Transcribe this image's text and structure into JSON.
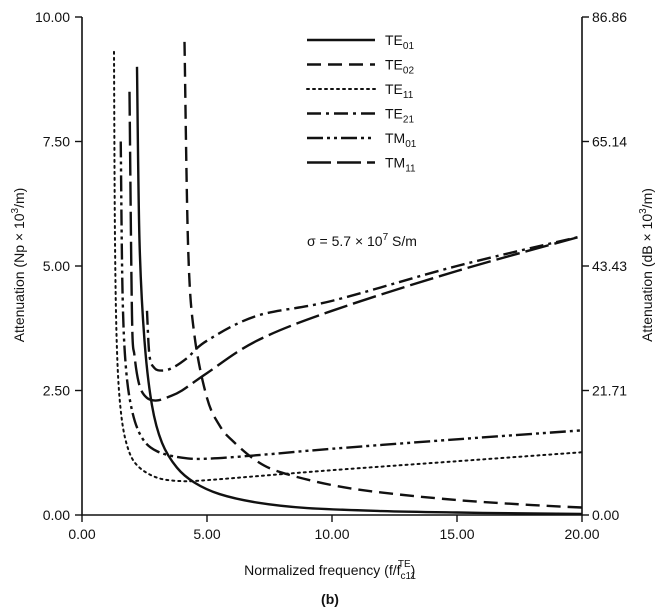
{
  "chart_data": {
    "type": "line",
    "xlabel": "Normalized frequency (f/f",
    "xlabel_sub": "c11",
    "xlabel_sup": "TE",
    "xlabel_end": ")",
    "ylabel_left": "Attenuation (Np × 10",
    "ylabel_left_sup": "3",
    "ylabel_left_end": "/m)",
    "ylabel_right": "Attenuation (dB × 10",
    "ylabel_right_sup": "3",
    "ylabel_right_end": "/m)",
    "xlim": [
      0,
      20
    ],
    "ylim": [
      0,
      10
    ],
    "x_ticks": [
      0,
      5,
      10,
      15,
      20
    ],
    "x_tick_labels": [
      "0.00",
      "5.00",
      "10.00",
      "15.00",
      "20.00"
    ],
    "y_ticks": [
      0,
      2.5,
      5,
      7.5,
      10
    ],
    "y_tick_labels": [
      "0.00",
      "2.50",
      "5.00",
      "7.50",
      "10.00"
    ],
    "y2_ticks": [
      0,
      2.5,
      5,
      7.5,
      10
    ],
    "y2_tick_labels": [
      "0.00",
      "21.71",
      "43.43",
      "65.14",
      "86.86"
    ],
    "grid": false,
    "legend_position": "top-right",
    "annotation": {
      "text": "σ = 5.7 × 10",
      "sup": "7",
      "end": " S/m"
    },
    "caption": "(b)",
    "series": [
      {
        "base": "TE",
        "sub": "01",
        "dash": "solid",
        "x": [
          2.2,
          2.3,
          2.5,
          2.8,
          3.2,
          3.8,
          4.5,
          5.5,
          7,
          9,
          12,
          15,
          18,
          20
        ],
        "y": [
          9.0,
          5.5,
          3.5,
          2.2,
          1.45,
          0.95,
          0.65,
          0.42,
          0.25,
          0.14,
          0.08,
          0.05,
          0.03,
          0.02
        ]
      },
      {
        "base": "TE",
        "sub": "02",
        "dash": "dashed",
        "x": [
          4.1,
          4.25,
          4.5,
          5.0,
          5.5,
          6,
          7,
          8,
          10,
          12,
          15,
          18,
          20
        ],
        "y": [
          9.5,
          5.3,
          3.6,
          2.35,
          1.8,
          1.5,
          1.08,
          0.85,
          0.6,
          0.45,
          0.3,
          0.2,
          0.15
        ]
      },
      {
        "base": "TE",
        "sub": "11",
        "dash": "dotted",
        "x": [
          1.28,
          1.32,
          1.4,
          1.55,
          1.8,
          2.2,
          3,
          4,
          5,
          7,
          10,
          15,
          20
        ],
        "y": [
          9.3,
          5.5,
          3.3,
          2.1,
          1.4,
          1.0,
          0.75,
          0.68,
          0.7,
          0.78,
          0.9,
          1.08,
          1.26
        ]
      },
      {
        "base": "TE",
        "sub": "21",
        "dash": "dashdot",
        "x": [
          2.6,
          2.7,
          2.9,
          3.2,
          3.6,
          4.2,
          5,
          7,
          10,
          15,
          20
        ],
        "y": [
          4.1,
          3.2,
          2.95,
          2.9,
          2.95,
          3.15,
          3.5,
          4.0,
          4.3,
          5.0,
          5.6
        ]
      },
      {
        "base": "TM",
        "sub": "01",
        "dash": "dashdotdot",
        "x": [
          1.55,
          1.62,
          1.75,
          2.0,
          2.4,
          3,
          4,
          5,
          7,
          10,
          15,
          20
        ],
        "y": [
          7.5,
          4.5,
          3.0,
          2.1,
          1.55,
          1.28,
          1.15,
          1.13,
          1.2,
          1.33,
          1.52,
          1.7
        ]
      },
      {
        "base": "TM",
        "sub": "11",
        "dash": "longdash",
        "x": [
          1.9,
          2.0,
          2.1,
          2.3,
          2.6,
          3.0,
          3.5,
          4,
          5,
          7,
          10,
          15,
          20
        ],
        "y": [
          8.5,
          4.0,
          3.2,
          2.6,
          2.35,
          2.3,
          2.38,
          2.5,
          2.85,
          3.5,
          4.1,
          4.9,
          5.6
        ]
      }
    ]
  }
}
